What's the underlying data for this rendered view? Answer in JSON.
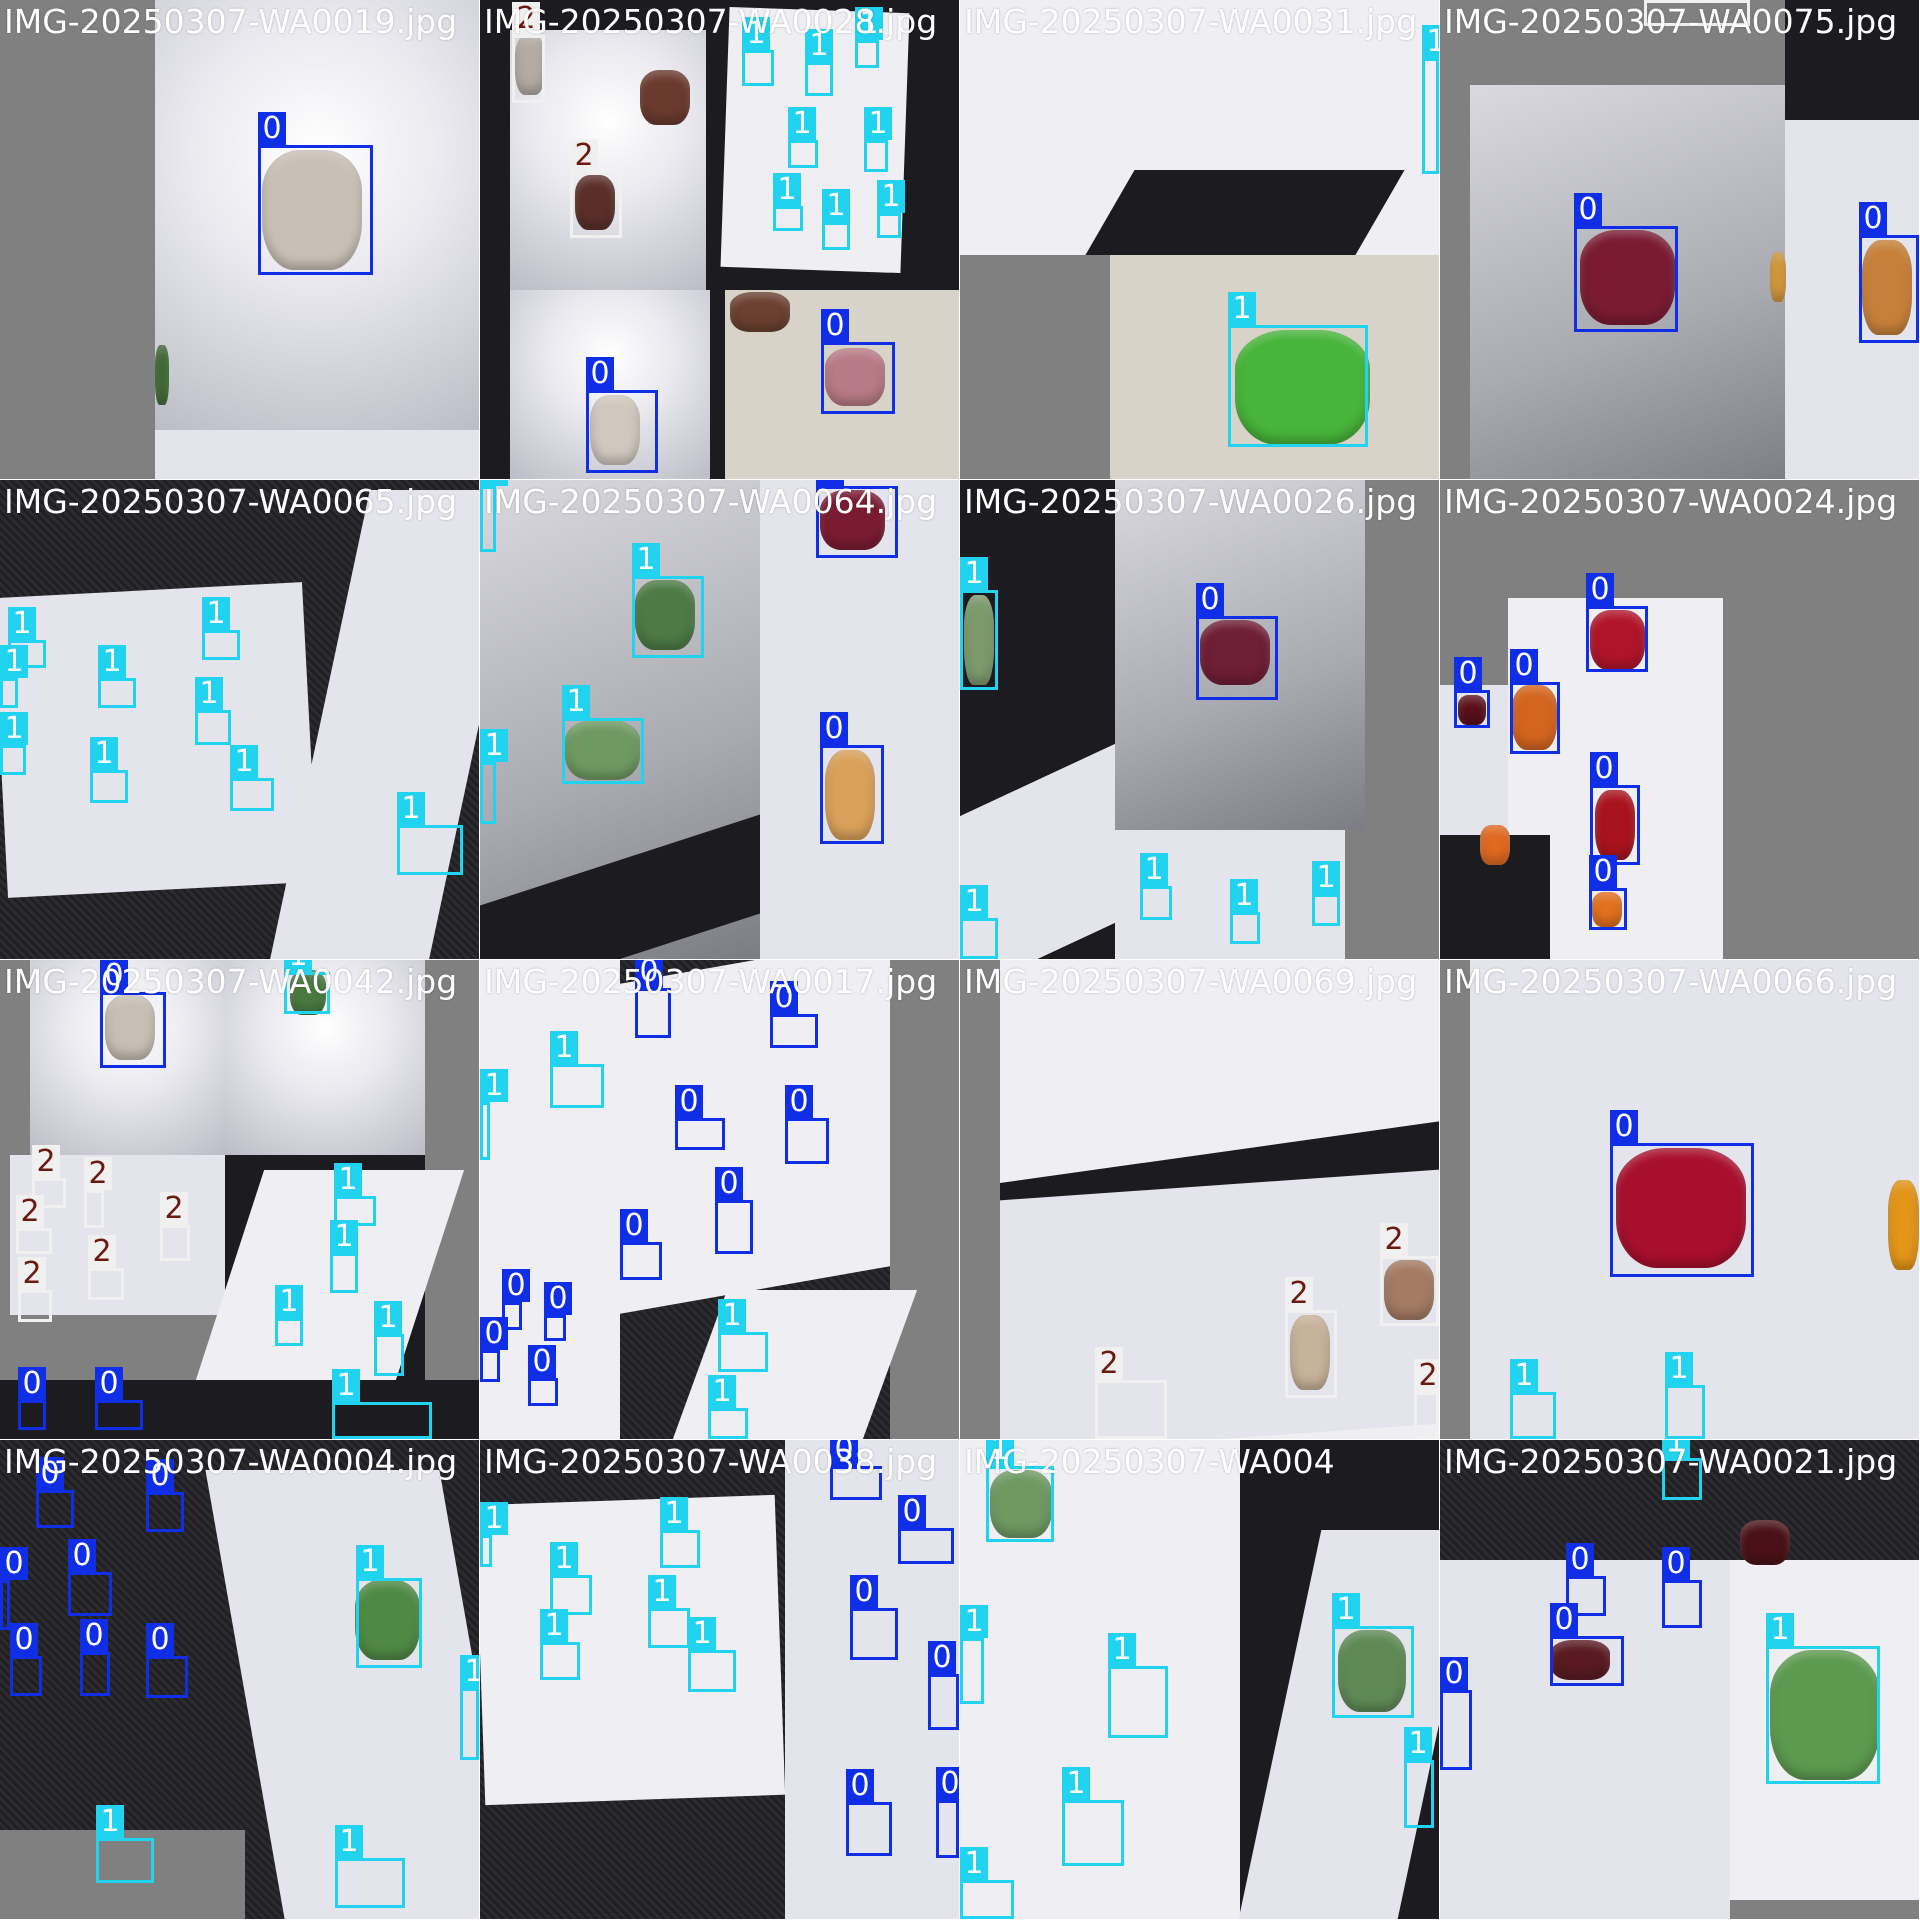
{
  "classes": {
    "0": {
      "label": "0",
      "color": "#0f2ee6"
    },
    "1": {
      "label": "1",
      "color": "#22d3f0"
    },
    "2": {
      "label": "2",
      "color": "#f0f0f0"
    }
  },
  "tiles": [
    {
      "title": "IMG-20250307-WA0019.jpg"
    },
    {
      "title": "IMG-20250307-WA0028.jpg"
    },
    {
      "title": "IMG-20250307-WA0031.jpg"
    },
    {
      "title": "IMG-20250307-WA0075.jpg"
    },
    {
      "title": "IMG-20250307-WA0065.jpg"
    },
    {
      "title": "IMG-20250307-WA0064.jpg"
    },
    {
      "title": "IMG-20250307-WA0026.jpg"
    },
    {
      "title": "IMG-20250307-WA0024.jpg"
    },
    {
      "title": "IMG-20250307-WA0042.jpg"
    },
    {
      "title": "IMG-20250307-WA0017.jpg"
    },
    {
      "title": "IMG-20250307-WA0069.jpg"
    },
    {
      "title": "IMG-20250307-WA0066.jpg"
    },
    {
      "title": "IMG-20250307-WA0004.jpg"
    },
    {
      "title": "IMG-20250307-WA0038.jpg"
    },
    {
      "title": "IMG-20250307-WA004"
    },
    {
      "title": "IMG-20250307-WA0021.jpg"
    }
  ]
}
